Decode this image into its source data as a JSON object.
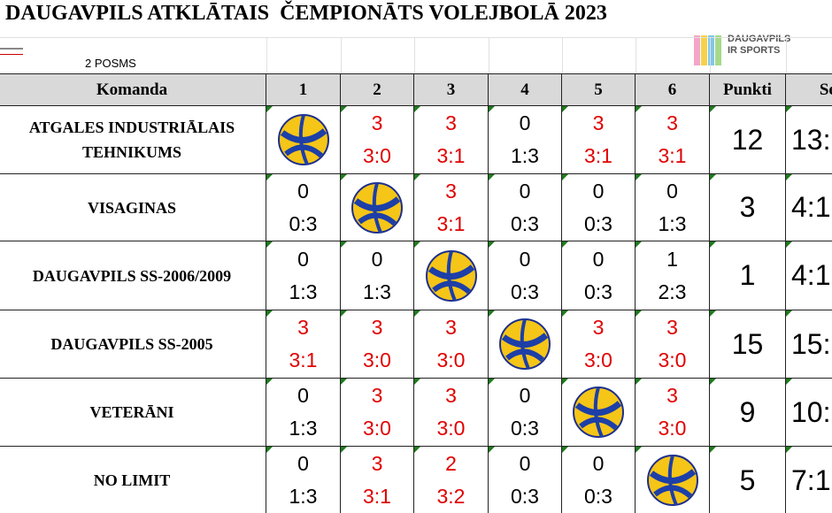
{
  "header": {
    "title": "DAUGAVPILS ATKLĀTAIS  ČEMPIONĀTS VOLEJBOLĀ 2023",
    "stage": "2 POSMS",
    "logo": [
      "DAUGAVPILS",
      "IR SPORTS"
    ]
  },
  "table": {
    "columns": [
      "Komanda",
      "1",
      "2",
      "3",
      "4",
      "5",
      "6",
      "Punkti",
      "Set"
    ],
    "rows": [
      {
        "team": [
          "ATGALES INDUSTRIĀLAIS",
          "TEHNIKUMS"
        ],
        "cells": [
          null,
          {
            "points": 3,
            "score": "3:0"
          },
          {
            "points": 3,
            "score": "3:1"
          },
          {
            "points": 0,
            "score": "1:3"
          },
          {
            "points": 3,
            "score": "3:1"
          },
          {
            "points": 3,
            "score": "3:1"
          }
        ],
        "points": 12,
        "sets": "13:"
      },
      {
        "team": [
          "VISAGINAS"
        ],
        "cells": [
          {
            "points": 0,
            "score": "0:3"
          },
          null,
          {
            "points": 3,
            "score": "3:1"
          },
          {
            "points": 0,
            "score": "0:3"
          },
          {
            "points": 0,
            "score": "0:3"
          },
          {
            "points": 0,
            "score": "1:3"
          }
        ],
        "points": 3,
        "sets": "4:1"
      },
      {
        "team": [
          "DAUGAVPILS SS-2006/2009"
        ],
        "cells": [
          {
            "points": 0,
            "score": "1:3"
          },
          {
            "points": 0,
            "score": "1:3"
          },
          null,
          {
            "points": 0,
            "score": "0:3"
          },
          {
            "points": 0,
            "score": "0:3"
          },
          {
            "points": 1,
            "score": "2:3"
          }
        ],
        "points": 1,
        "sets": "4:1"
      },
      {
        "team": [
          "DAUGAVPILS SS-2005"
        ],
        "cells": [
          {
            "points": 3,
            "score": "3:1"
          },
          {
            "points": 3,
            "score": "3:0"
          },
          {
            "points": 3,
            "score": "3:0"
          },
          null,
          {
            "points": 3,
            "score": "3:0"
          },
          {
            "points": 3,
            "score": "3:0"
          }
        ],
        "points": 15,
        "sets": "15:"
      },
      {
        "team": [
          "VETERĀNI"
        ],
        "cells": [
          {
            "points": 0,
            "score": "1:3"
          },
          {
            "points": 3,
            "score": "3:0"
          },
          {
            "points": 3,
            "score": "3:0"
          },
          {
            "points": 0,
            "score": "0:3"
          },
          null,
          {
            "points": 3,
            "score": "3:0"
          }
        ],
        "points": 9,
        "sets": "10:"
      },
      {
        "team": [
          "NO LIMIT"
        ],
        "cells": [
          {
            "points": 0,
            "score": "1:3"
          },
          {
            "points": 3,
            "score": "3:1"
          },
          {
            "points": 2,
            "score": "3:2"
          },
          {
            "points": 0,
            "score": "0:3"
          },
          {
            "points": 0,
            "score": "0:3"
          },
          null
        ],
        "points": 5,
        "sets": "7:1"
      }
    ]
  }
}
